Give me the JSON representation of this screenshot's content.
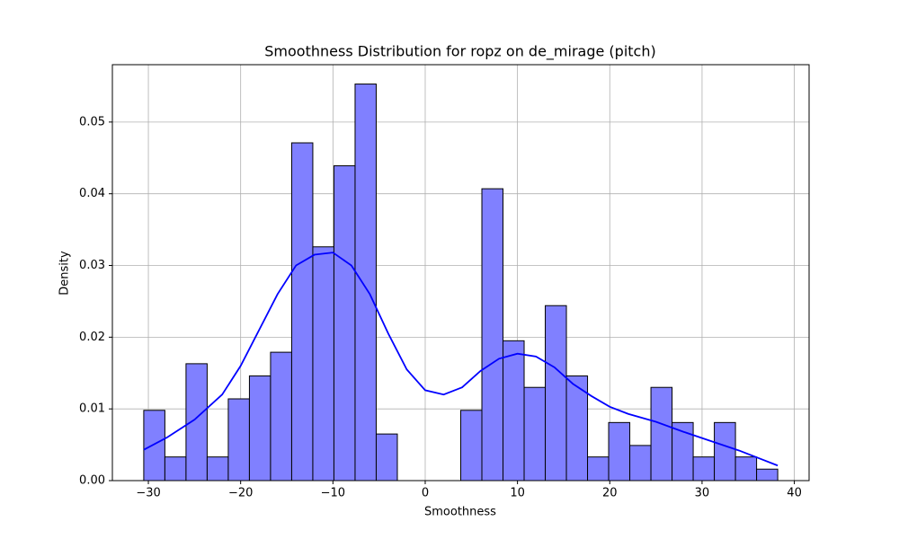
{
  "chart_data": {
    "type": "histogram",
    "title": "Smoothness Distribution for ropz on de_mirage (pitch)",
    "xlabel": "Smoothness",
    "ylabel": "Density",
    "bins": [
      -30.5,
      -28.21,
      -25.92,
      -23.63,
      -21.34,
      -19.05,
      -16.76,
      -14.47,
      -12.18,
      -9.89,
      -7.6,
      -5.31,
      -3.02,
      -0.73,
      1.56,
      3.85,
      6.14,
      8.43,
      10.72,
      13.01,
      15.3,
      17.59,
      19.88,
      22.17,
      24.46,
      26.75,
      29.04,
      31.33,
      33.62,
      35.91,
      38.2
    ],
    "values": [
      0.0098,
      0.0033,
      0.0163,
      0.0033,
      0.0114,
      0.0146,
      0.0179,
      0.0471,
      0.0326,
      0.0439,
      0.0553,
      0.0065,
      0,
      0,
      0,
      0.0098,
      0.0407,
      0.0195,
      0.013,
      0.0244,
      0.0146,
      0.0033,
      0.0081,
      0.0049,
      0.013,
      0.0081,
      0.0033,
      0.0081,
      0.0033,
      0.0016
    ],
    "color": "#8080ff",
    "edgecolor": "#000000",
    "kde": {
      "color": "#0000ff",
      "x": [
        -30.5,
        -28,
        -25,
        -22,
        -20,
        -18,
        -16,
        -14,
        -12,
        -10,
        -8,
        -6,
        -4,
        -2,
        0,
        2,
        4,
        6,
        8,
        10,
        12,
        14,
        16,
        18,
        20,
        22,
        25,
        28,
        31,
        34,
        36,
        38.2
      ],
      "values": [
        0.0043,
        0.006,
        0.0085,
        0.012,
        0.016,
        0.021,
        0.026,
        0.03,
        0.0315,
        0.0318,
        0.03,
        0.026,
        0.0205,
        0.0155,
        0.0126,
        0.012,
        0.013,
        0.0153,
        0.017,
        0.0177,
        0.0173,
        0.0158,
        0.0135,
        0.0118,
        0.0103,
        0.0093,
        0.0082,
        0.0068,
        0.0055,
        0.0042,
        0.0032,
        0.0021
      ]
    },
    "xlim": [
      -33.9,
      41.6
    ],
    "ylim": [
      0,
      0.058
    ],
    "xticks": [
      {
        "value": -30,
        "label": "−30"
      },
      {
        "value": -20,
        "label": "−20"
      },
      {
        "value": -10,
        "label": "−10"
      },
      0,
      10,
      20,
      30,
      40
    ],
    "yticks": [
      {
        "value": 0,
        "label": "0.00"
      },
      0.01,
      0.02,
      0.03,
      0.04,
      0.05
    ],
    "grid": true
  }
}
